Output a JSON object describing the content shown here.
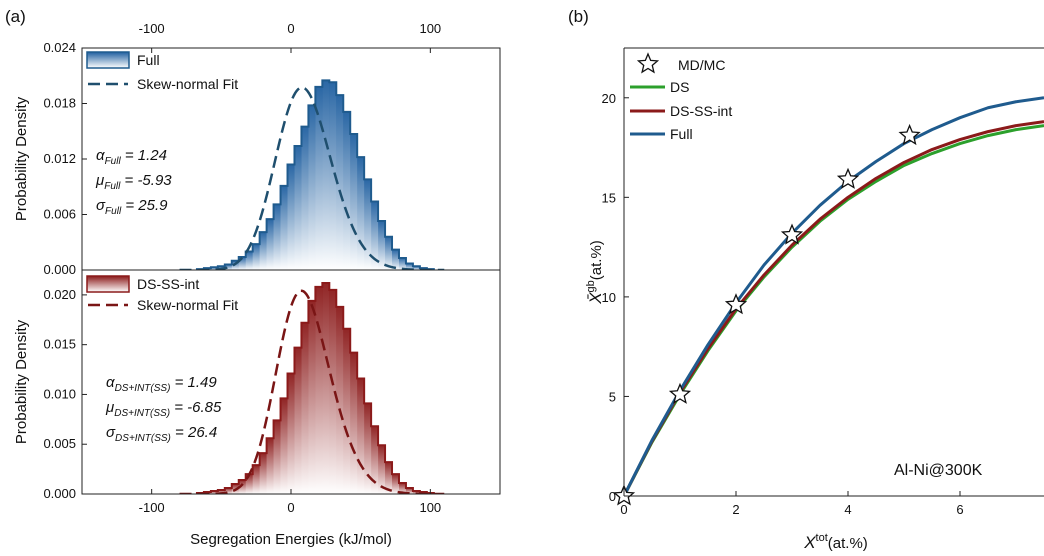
{
  "panel_labels": [
    "(a)",
    "(b)"
  ],
  "colors": {
    "full": "#1f5b8e",
    "full_fill_top": "#1f5fa0",
    "ds_ss": "#8b1a1a",
    "ds_ss_fill_top": "#8b1a1a",
    "ds": "#2ca02c",
    "fit_full": "#1f4f6e",
    "fit_ds": "#7a1515"
  },
  "chart_data": [
    {
      "id": "a-top",
      "type": "histogram",
      "ylabel": "Probability Density",
      "xlim": [
        -150,
        150
      ],
      "ylim": [
        0,
        0.024
      ],
      "xticks_top": [
        -100,
        0,
        100
      ],
      "yticks": [
        "0.000",
        "0.006",
        "0.012",
        "0.018",
        "0.024"
      ],
      "bin_width": 5,
      "hist_start": -67.5,
      "hist_density": [
        0.0001,
        0.0002,
        0.0003,
        0.0004,
        0.0006,
        0.001,
        0.0014,
        0.002,
        0.0028,
        0.0041,
        0.0055,
        0.0071,
        0.0091,
        0.0114,
        0.0134,
        0.0155,
        0.0178,
        0.0198,
        0.0205,
        0.0203,
        0.0189,
        0.0171,
        0.0147,
        0.0122,
        0.0098,
        0.0074,
        0.0053,
        0.0036,
        0.0022,
        0.0013,
        0.0007,
        0.0004,
        0.0002,
        0.0001
      ],
      "legend": [
        "Full",
        "Skew-normal Fit"
      ],
      "fit": {
        "alpha": 1.24,
        "mu": -5.93,
        "sigma": 25.9
      },
      "annotations": [
        {
          "sym": "α",
          "sub": "Full",
          "text": " = 1.24"
        },
        {
          "sym": "μ",
          "sub": "Full",
          "text": " = -5.93"
        },
        {
          "sym": "σ",
          "sub": "Full",
          "text": " = 25.9"
        }
      ]
    },
    {
      "id": "a-bottom",
      "type": "histogram",
      "ylabel": "Probability Density",
      "xlabel": "Segregation Energies (kJ/mol)",
      "xlim": [
        -150,
        150
      ],
      "ylim": [
        0,
        0.0225
      ],
      "xticks": [
        -100,
        0,
        100
      ],
      "yticks": [
        "0.000",
        "0.005",
        "0.010",
        "0.015",
        "0.020"
      ],
      "bin_width": 5,
      "hist_start": -67.5,
      "hist_density": [
        0.0001,
        0.0002,
        0.0003,
        0.0004,
        0.0006,
        0.001,
        0.0014,
        0.002,
        0.0029,
        0.0041,
        0.0056,
        0.0074,
        0.0096,
        0.0121,
        0.0147,
        0.0172,
        0.0194,
        0.0208,
        0.0212,
        0.0205,
        0.0188,
        0.0166,
        0.0142,
        0.0116,
        0.0091,
        0.0068,
        0.0049,
        0.0032,
        0.002,
        0.0011,
        0.0006,
        0.0003,
        0.0002,
        0.0001
      ],
      "legend": [
        "DS-SS-int",
        "Skew-normal Fit"
      ],
      "fit": {
        "alpha": 1.49,
        "mu": -6.85,
        "sigma": 26.4
      },
      "annotations": [
        {
          "sym": "α",
          "sub": "DS+INT(SS)",
          "text": " = 1.49"
        },
        {
          "sym": "μ",
          "sub": "DS+INT(SS)",
          "text": " = -6.85"
        },
        {
          "sym": "σ",
          "sub": "DS+INT(SS)",
          "text": " = 26.4"
        }
      ]
    },
    {
      "id": "b",
      "type": "line",
      "xlabel": {
        "main": "X",
        "sup": "tot",
        "rest": "(at.%)"
      },
      "ylabel": {
        "main": "X̄",
        "sup": "gb",
        "rest": "(at.%)"
      },
      "xlim": [
        0,
        7.5
      ],
      "ylim": [
        0,
        22.5
      ],
      "xticks": [
        0,
        2,
        4,
        6
      ],
      "yticks": [
        0,
        5,
        10,
        15,
        20
      ],
      "legend": [
        "MD/MC",
        "DS",
        "DS-SS-int",
        "Full"
      ],
      "annotation": "Al-Ni@300K",
      "markers": {
        "name": "MD/MC",
        "x": [
          0,
          1,
          2,
          3,
          4,
          5.1
        ],
        "y": [
          0,
          5.1,
          9.6,
          13.1,
          15.9,
          18.1
        ]
      },
      "series": [
        {
          "name": "DS",
          "x": [
            0,
            0.5,
            1,
            1.5,
            2,
            2.5,
            3,
            3.5,
            4,
            4.5,
            5,
            5.5,
            6,
            6.5,
            7,
            7.5
          ],
          "y": [
            0,
            2.7,
            5.1,
            7.3,
            9.3,
            11.0,
            12.5,
            13.8,
            14.9,
            15.8,
            16.6,
            17.2,
            17.7,
            18.1,
            18.4,
            18.6
          ]
        },
        {
          "name": "DS-SS-int",
          "x": [
            0,
            0.5,
            1,
            1.5,
            2,
            2.5,
            3,
            3.5,
            4,
            4.5,
            5,
            5.5,
            6,
            6.5,
            7,
            7.5
          ],
          "y": [
            0,
            2.75,
            5.2,
            7.4,
            9.4,
            11.1,
            12.6,
            13.9,
            15.0,
            15.95,
            16.75,
            17.4,
            17.9,
            18.3,
            18.6,
            18.8
          ]
        },
        {
          "name": "Full",
          "x": [
            0,
            0.5,
            1,
            1.5,
            2,
            2.5,
            3,
            3.5,
            4,
            4.5,
            5,
            5.5,
            6,
            6.5,
            7,
            7.5
          ],
          "y": [
            0,
            2.8,
            5.3,
            7.6,
            9.7,
            11.6,
            13.2,
            14.6,
            15.8,
            16.8,
            17.7,
            18.4,
            19.0,
            19.5,
            19.8,
            20.0
          ]
        }
      ]
    }
  ]
}
